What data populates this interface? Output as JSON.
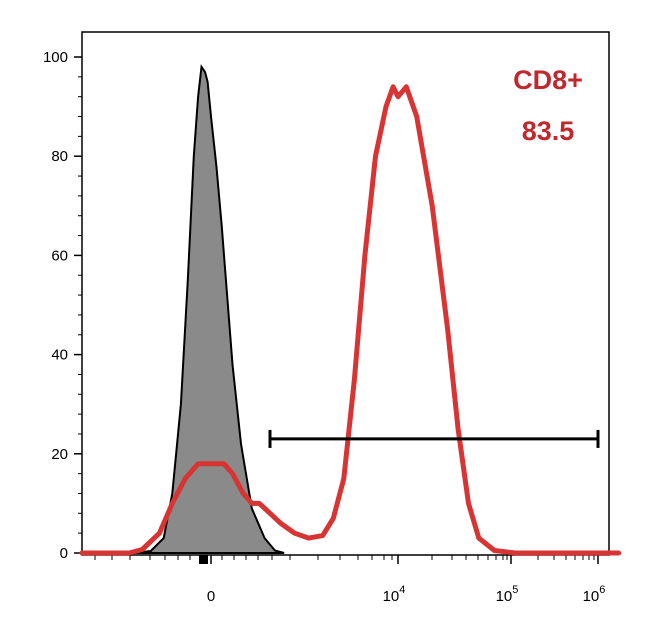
{
  "chart_data": {
    "type": "histogram",
    "title": "",
    "xlabel": "",
    "ylabel": "",
    "x_scale": "biexponential",
    "xlim_display": [
      "below 0",
      "10^6"
    ],
    "ylim": [
      0,
      100
    ],
    "yticks": [
      0,
      20,
      40,
      60,
      80,
      100
    ],
    "ytick_labels": [
      "0",
      "20",
      "40",
      "60",
      "80",
      "100"
    ],
    "xtick_labels": [
      {
        "value": 0,
        "base": "0",
        "exp": ""
      },
      {
        "value": 10000,
        "base": "10",
        "exp": "4"
      },
      {
        "value": 100000,
        "base": "10",
        "exp": "5"
      },
      {
        "value": 1000000,
        "base": "10",
        "exp": "6"
      }
    ],
    "series": [
      {
        "style": "filled",
        "color": "#8a8a8a",
        "edge_color": "#000000",
        "note_x_units": "points are [biexponential display position in decades, percent of max]",
        "points": [
          [
            -0.9,
            0
          ],
          [
            -0.7,
            0.4
          ],
          [
            -0.55,
            3
          ],
          [
            -0.45,
            12
          ],
          [
            -0.35,
            30
          ],
          [
            -0.27,
            55
          ],
          [
            -0.2,
            80
          ],
          [
            -0.15,
            92
          ],
          [
            -0.11,
            98
          ],
          [
            -0.07,
            97
          ],
          [
            -0.04,
            95
          ],
          [
            0.0,
            88
          ],
          [
            0.05,
            78
          ],
          [
            0.1,
            66
          ],
          [
            0.15,
            52
          ],
          [
            0.2,
            38
          ],
          [
            0.28,
            22
          ],
          [
            0.38,
            9
          ],
          [
            0.5,
            3
          ],
          [
            0.62,
            0.5
          ],
          [
            0.75,
            0
          ]
        ]
      },
      {
        "style": "line",
        "color": "#d93434",
        "points": [
          [
            -1.5,
            0
          ],
          [
            -0.95,
            0
          ],
          [
            -0.8,
            0.7
          ],
          [
            -0.6,
            4
          ],
          [
            -0.45,
            10
          ],
          [
            -0.3,
            15
          ],
          [
            -0.15,
            18
          ],
          [
            0.0,
            18
          ],
          [
            0.12,
            18
          ],
          [
            0.2,
            16
          ],
          [
            0.3,
            12
          ],
          [
            0.38,
            10
          ],
          [
            0.45,
            10
          ],
          [
            0.55,
            8
          ],
          [
            0.7,
            6
          ],
          [
            0.9,
            4
          ],
          [
            1.1,
            3
          ],
          [
            1.3,
            3.5
          ],
          [
            1.45,
            7
          ],
          [
            1.6,
            15
          ],
          [
            1.75,
            35
          ],
          [
            1.9,
            60
          ],
          [
            2.05,
            80
          ],
          [
            2.2,
            90
          ],
          [
            2.3,
            94
          ],
          [
            2.37,
            92
          ],
          [
            2.45,
            94
          ],
          [
            2.55,
            88
          ],
          [
            2.7,
            70
          ],
          [
            2.85,
            45
          ],
          [
            2.95,
            25
          ],
          [
            3.05,
            10
          ],
          [
            3.15,
            3
          ],
          [
            3.3,
            0.5
          ],
          [
            3.5,
            0
          ],
          [
            4.5,
            0
          ]
        ]
      }
    ],
    "gate": {
      "name": "CD8+",
      "percent": "83.5",
      "x_start_display": 0.55,
      "x_end_display": 4.3,
      "y": 23
    }
  }
}
